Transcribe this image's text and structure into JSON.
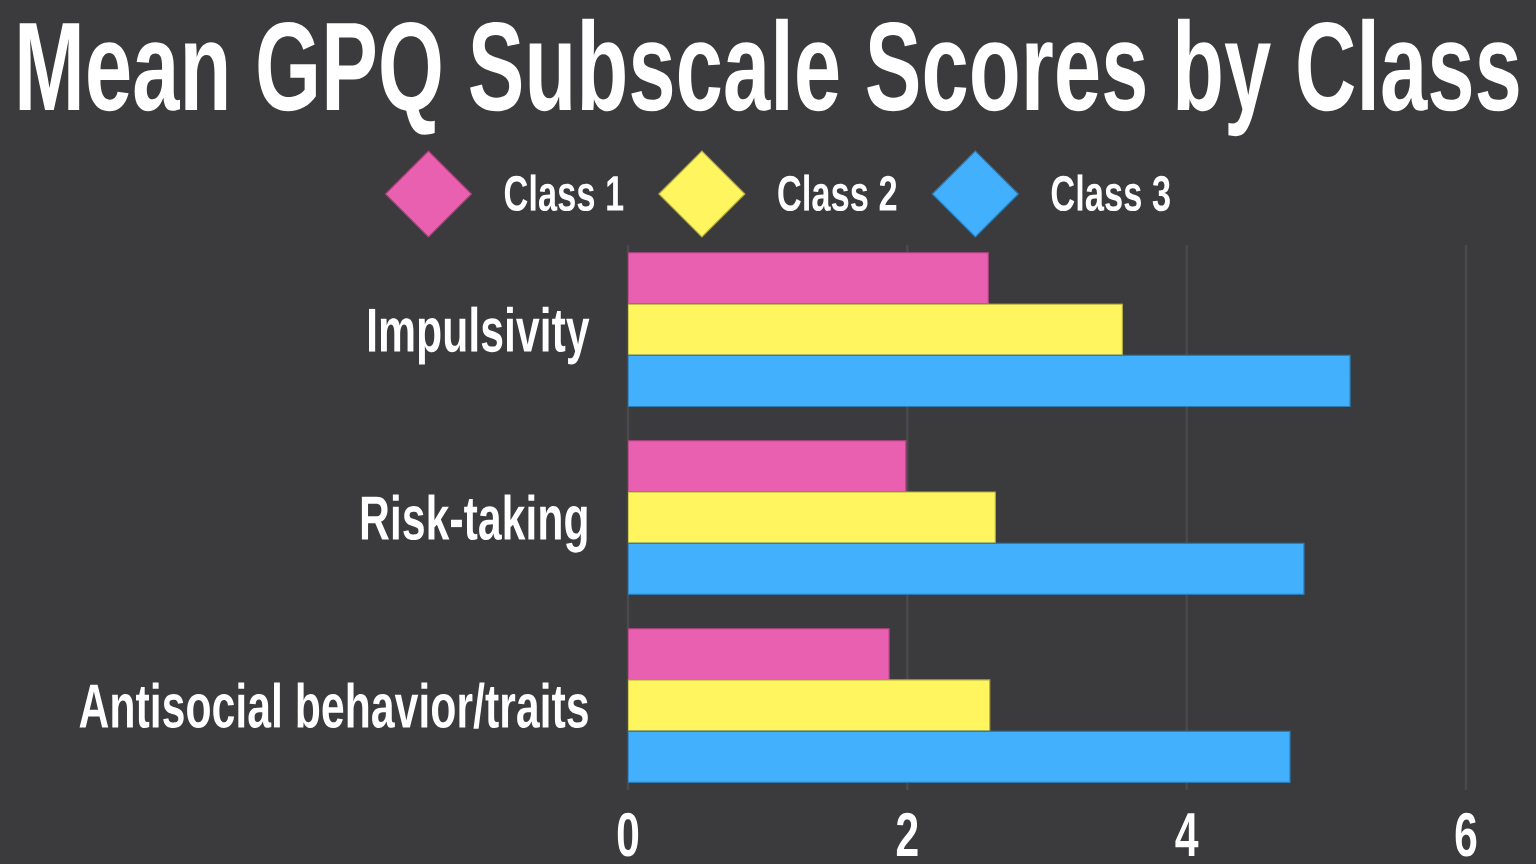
{
  "chart_data": {
    "type": "bar",
    "orientation": "horizontal",
    "title": "Mean GPQ Subscale Scores by Class",
    "categories": [
      "Impulsivity",
      "Risk-taking",
      "Antisocial behavior/traits"
    ],
    "series": [
      {
        "name": "Class 1",
        "color": "#ea60b0",
        "values": [
          2.58,
          1.99,
          1.87
        ]
      },
      {
        "name": "Class 2",
        "color": "#fff65f",
        "values": [
          3.54,
          2.63,
          2.59
        ]
      },
      {
        "name": "Class 3",
        "color": "#42b0fd",
        "values": [
          5.17,
          4.84,
          4.74
        ]
      }
    ],
    "xlim": [
      0,
      6
    ],
    "xticks": [
      0,
      2,
      4,
      6
    ],
    "grid": "x",
    "legend": "top"
  }
}
